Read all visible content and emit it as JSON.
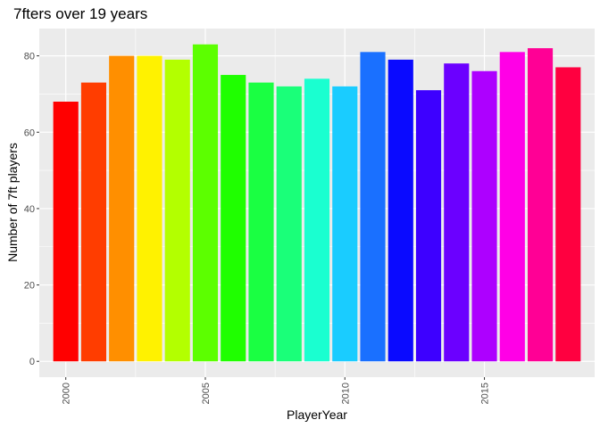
{
  "chart_data": {
    "type": "bar",
    "title": "7fters over 19 years",
    "xlabel": "PlayerYear",
    "ylabel": "Number of 7ft players",
    "x": [
      2000,
      2001,
      2002,
      2003,
      2004,
      2005,
      2006,
      2007,
      2008,
      2009,
      2010,
      2011,
      2012,
      2013,
      2014,
      2015,
      2016,
      2017,
      2018
    ],
    "values": [
      68,
      73,
      80,
      80,
      79,
      83,
      75,
      73,
      72,
      74,
      72,
      81,
      79,
      71,
      78,
      76,
      81,
      82,
      77
    ],
    "colors": [
      "#FF0000",
      "#FF3D00",
      "#FF8F00",
      "#FFF200",
      "#B3FF00",
      "#5CFF00",
      "#1FFF00",
      "#1AFF42",
      "#1AFF79",
      "#1AFFD0",
      "#1ACCFF",
      "#1A70FF",
      "#0A0AFF",
      "#3D00FF",
      "#6B00FF",
      "#AD00FF",
      "#FF00E6",
      "#FF0095",
      "#FF0040"
    ],
    "xticks": [
      2000,
      2005,
      2010,
      2015
    ],
    "xtick_labels": [
      "2000",
      "2005",
      "2010",
      "2015"
    ],
    "yticks": [
      0,
      20,
      40,
      60,
      80
    ],
    "ytick_labels": [
      "0",
      "20",
      "40",
      "60",
      "80"
    ],
    "xlim": [
      1999.05,
      2018.95
    ],
    "ylim": [
      -4.15,
      87.15
    ],
    "grid": true,
    "legend": "none",
    "panel_background": "#EBEBEB",
    "grid_color": "#FFFFFF"
  }
}
